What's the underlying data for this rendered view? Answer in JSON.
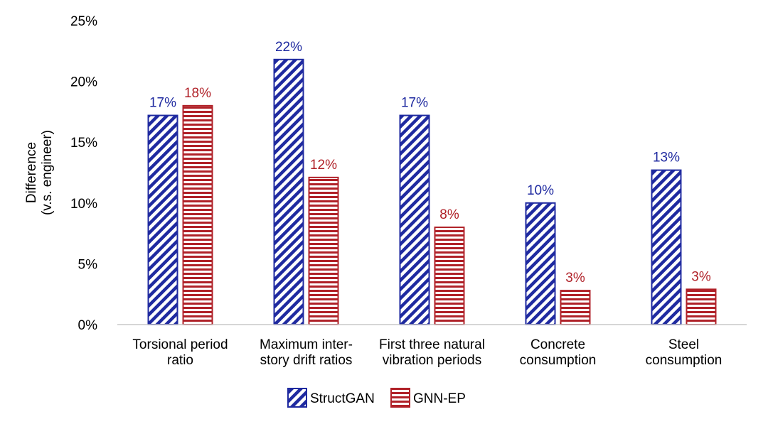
{
  "chart_data": {
    "type": "bar",
    "title": "",
    "xlabel": "",
    "ylabel": [
      "Difference",
      "(v.s. engineer)"
    ],
    "ylim": [
      0,
      25
    ],
    "yticks": [
      0,
      5,
      10,
      15,
      20,
      25
    ],
    "ytick_labels": [
      "0%",
      "5%",
      "10%",
      "15%",
      "20%",
      "25%"
    ],
    "categories": [
      [
        "Torsional period",
        "ratio"
      ],
      [
        "Maximum inter-",
        "story drift ratios"
      ],
      [
        "First three natural",
        "vibration periods"
      ],
      [
        "Concrete",
        "consumption"
      ],
      [
        "Steel",
        "consumption"
      ]
    ],
    "series": [
      {
        "name": "StructGAN",
        "color": "#1f2aa0",
        "pattern": "diagonal-stripes",
        "values": [
          17.2,
          21.8,
          17.2,
          10.0,
          12.7
        ],
        "labels": [
          "17%",
          "22%",
          "17%",
          "10%",
          "13%"
        ]
      },
      {
        "name": "GNN-EP",
        "color": "#b02128",
        "pattern": "horizontal-stripes",
        "values": [
          18.0,
          12.1,
          8.0,
          2.8,
          2.9
        ],
        "labels": [
          "18%",
          "12%",
          "8%",
          "3%",
          "3%"
        ]
      }
    ],
    "grid": false,
    "legend": "bottom-center"
  }
}
